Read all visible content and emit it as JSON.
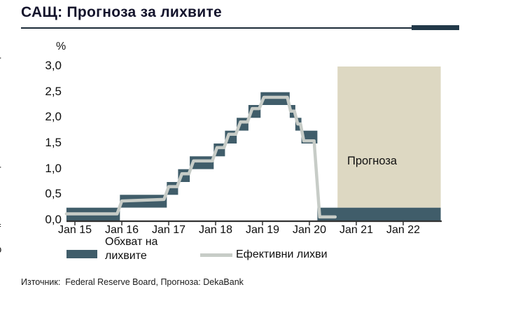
{
  "page": {
    "title": "САЩ: Прогноза за лихвите",
    "source": "Източник:  Federal Reserve Board, Прогноза: DekaBank"
  },
  "edge_fragments": [
    {
      "text": "-"
    },
    {
      "text": "-"
    },
    {
      "text": "f"
    },
    {
      "text": "o"
    }
  ],
  "colors": {
    "band": "#405d6a",
    "effective_line": "#c7ccc7",
    "forecast_fill": "#ddd8c2",
    "title_text": "#13132b",
    "rule": "#1c2b38",
    "rule_accent": "#223949",
    "axis": "#333333"
  },
  "chart_data": {
    "type": "area",
    "title": "САЩ: Прогноза за лихвите",
    "ylabel": "%",
    "xlabel": "",
    "ylim": [
      0,
      3.0
    ],
    "grid": false,
    "legend_position": "bottom",
    "x_axis_note": "t measured in years since Jan 2015",
    "x_start_t": -0.18,
    "x_end_t": 7.8,
    "yticks": [
      {
        "label": "3,0",
        "value": 3.0
      },
      {
        "label": "2,5",
        "value": 2.5
      },
      {
        "label": "2,0",
        "value": 2.0
      },
      {
        "label": "1,5",
        "value": 1.5
      },
      {
        "label": "1,0",
        "value": 1.0
      },
      {
        "label": "0,5",
        "value": 0.5
      },
      {
        "label": "0,0",
        "value": 0.0
      }
    ],
    "xticks": [
      {
        "label": "Jan 15",
        "t": 0
      },
      {
        "label": "Jan 16",
        "t": 1
      },
      {
        "label": "Jan 17",
        "t": 2
      },
      {
        "label": "Jan 18",
        "t": 3
      },
      {
        "label": "Jan 19",
        "t": 4
      },
      {
        "label": "Jan 20",
        "t": 5
      },
      {
        "label": "Jan 21",
        "t": 6
      },
      {
        "label": "Jan 22",
        "t": 7
      }
    ],
    "forecast": {
      "label": "Прогноза",
      "start_t": 5.6,
      "end_t": 7.8,
      "bottom_value": 0.25
    },
    "series": [
      {
        "name": "Обхват на лихвите",
        "type": "step_band",
        "end_t": 7.8,
        "steps": [
          {
            "t": -0.18,
            "low": 0.0,
            "high": 0.25
          },
          {
            "t": 0.96,
            "low": 0.25,
            "high": 0.5
          },
          {
            "t": 1.96,
            "low": 0.5,
            "high": 0.75
          },
          {
            "t": 2.2,
            "low": 0.75,
            "high": 1.0
          },
          {
            "t": 2.45,
            "low": 1.0,
            "high": 1.25
          },
          {
            "t": 2.96,
            "low": 1.25,
            "high": 1.5
          },
          {
            "t": 3.2,
            "low": 1.5,
            "high": 1.75
          },
          {
            "t": 3.45,
            "low": 1.75,
            "high": 2.0
          },
          {
            "t": 3.7,
            "low": 2.0,
            "high": 2.25
          },
          {
            "t": 3.96,
            "low": 2.25,
            "high": 2.5
          },
          {
            "t": 4.58,
            "low": 2.0,
            "high": 2.25
          },
          {
            "t": 4.7,
            "low": 1.75,
            "high": 2.0
          },
          {
            "t": 4.83,
            "low": 1.5,
            "high": 1.75
          },
          {
            "t": 5.17,
            "low": 0.0,
            "high": 0.25
          }
        ]
      },
      {
        "name": "Ефективни лихви",
        "type": "line",
        "points": [
          [
            -0.18,
            0.13
          ],
          [
            0.9,
            0.13
          ],
          [
            1.0,
            0.38
          ],
          [
            1.9,
            0.41
          ],
          [
            2.0,
            0.66
          ],
          [
            2.18,
            0.66
          ],
          [
            2.28,
            0.91
          ],
          [
            2.43,
            0.91
          ],
          [
            2.53,
            1.16
          ],
          [
            2.93,
            1.16
          ],
          [
            3.03,
            1.42
          ],
          [
            3.18,
            1.42
          ],
          [
            3.28,
            1.68
          ],
          [
            3.43,
            1.68
          ],
          [
            3.53,
            1.92
          ],
          [
            3.68,
            1.92
          ],
          [
            3.78,
            2.18
          ],
          [
            3.93,
            2.18
          ],
          [
            4.03,
            2.4
          ],
          [
            4.53,
            2.4
          ],
          [
            4.6,
            2.13
          ],
          [
            4.68,
            2.13
          ],
          [
            4.75,
            1.88
          ],
          [
            4.81,
            1.88
          ],
          [
            4.88,
            1.55
          ],
          [
            5.1,
            1.55
          ],
          [
            5.22,
            0.07
          ],
          [
            5.55,
            0.07
          ]
        ]
      }
    ]
  }
}
